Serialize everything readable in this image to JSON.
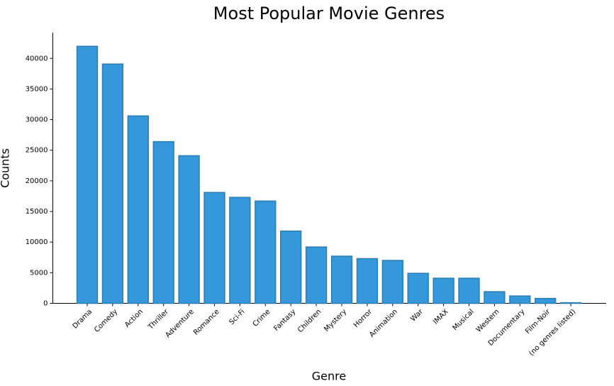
{
  "chart_data": {
    "type": "bar",
    "title": "Most Popular Movie Genres",
    "x_label": "Genre",
    "y_label": "Counts",
    "categories": [
      "Drama",
      "Comedy",
      "Action",
      "Thriller",
      "Adventure",
      "Romance",
      "Sci-Fi",
      "Crime",
      "Fantasy",
      "Children",
      "Mystery",
      "Horror",
      "Animation",
      "War",
      "IMAX",
      "Musical",
      "Western",
      "Documentary",
      "Film-Noir",
      "(no genres listed)"
    ],
    "values": [
      41970,
      39070,
      30600,
      26400,
      24100,
      18100,
      17300,
      16700,
      11800,
      9200,
      7700,
      7300,
      7000,
      4900,
      4100,
      4100,
      1900,
      1200,
      800,
      100
    ],
    "color": "#3498db",
    "edgecolor": "#2b7cb3",
    "ylim": [
      0,
      44200
    ],
    "yticks": [
      0,
      5000,
      10000,
      15000,
      20000,
      25000,
      30000,
      35000,
      40000
    ],
    "grid": false
  }
}
